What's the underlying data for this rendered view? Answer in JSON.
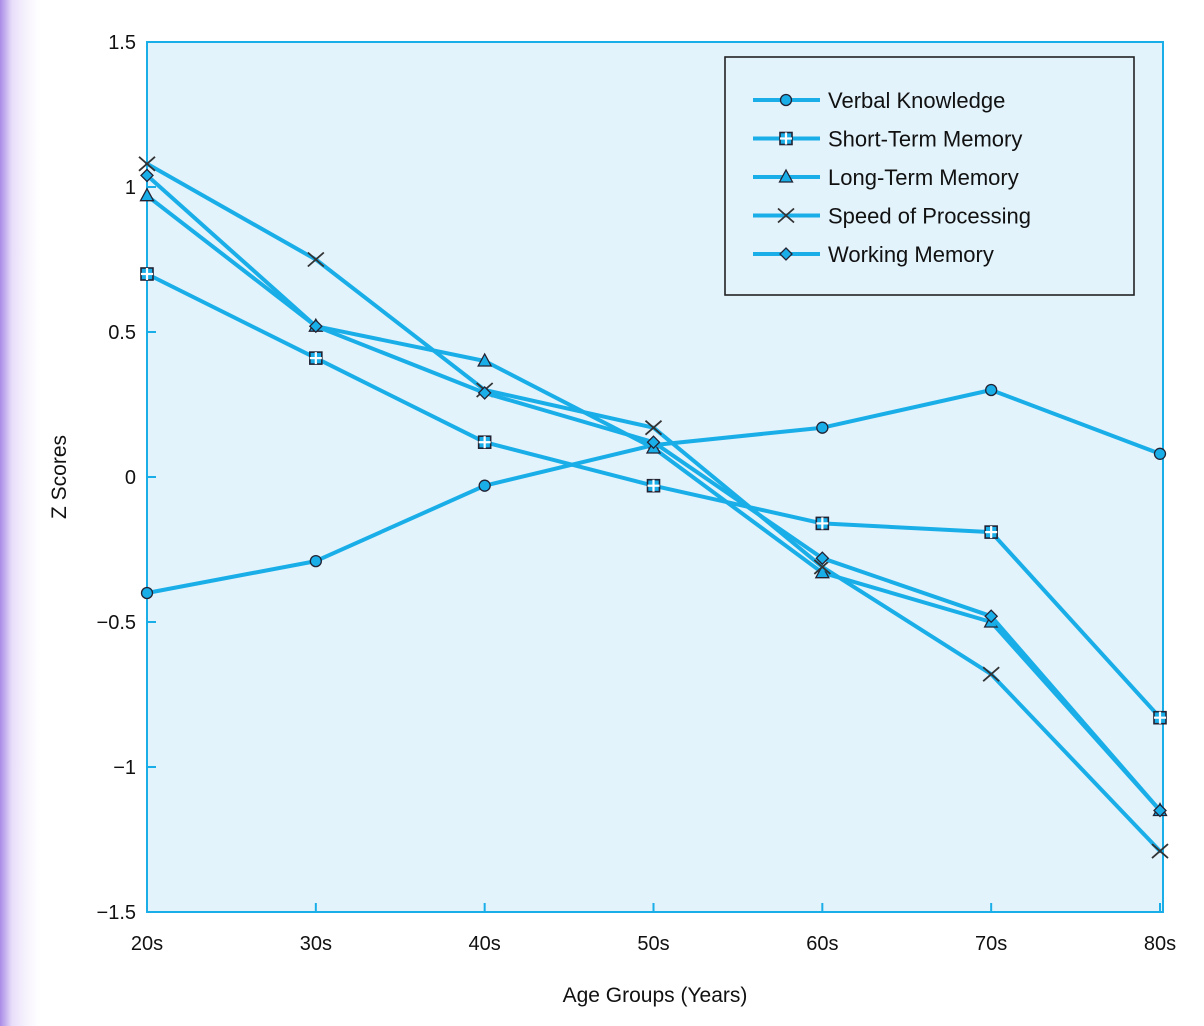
{
  "chart_data": {
    "type": "line",
    "title": "",
    "xlabel": "Age Groups (Years)",
    "ylabel": "Z Scores",
    "categories": [
      "20s",
      "30s",
      "40s",
      "50s",
      "60s",
      "70s",
      "80s"
    ],
    "ylim": [
      -1.5,
      1.5
    ],
    "yticks": [
      {
        "value": 1.5,
        "label": "1.5"
      },
      {
        "value": 1,
        "label": "1"
      },
      {
        "value": 0.5,
        "label": "0.5"
      },
      {
        "value": 0,
        "label": "0"
      },
      {
        "value": -0.5,
        "label": "−0.5"
      },
      {
        "value": -1,
        "label": "−1"
      },
      {
        "value": -1.5,
        "label": "−1.5"
      }
    ],
    "grid": false,
    "legend_position": "top-right",
    "line_color": "#1aaee8",
    "plot_background": "#e2f3fc",
    "series": [
      {
        "name": "Verbal Knowledge",
        "marker": "circle",
        "values": [
          -0.4,
          -0.29,
          -0.03,
          0.11,
          0.17,
          0.3,
          0.08
        ]
      },
      {
        "name": "Short-Term Memory",
        "marker": "square",
        "values": [
          0.7,
          0.41,
          0.12,
          -0.03,
          -0.16,
          -0.19,
          -0.83
        ]
      },
      {
        "name": "Long-Term Memory",
        "marker": "triangle",
        "values": [
          0.97,
          0.52,
          0.4,
          0.1,
          -0.33,
          -0.5,
          -1.15
        ]
      },
      {
        "name": "Speed of Processing",
        "marker": "x",
        "values": [
          1.08,
          0.75,
          0.3,
          0.17,
          -0.31,
          -0.68,
          -1.29
        ]
      },
      {
        "name": "Working Memory",
        "marker": "diamond",
        "values": [
          1.04,
          0.52,
          0.29,
          0.12,
          -0.28,
          -0.48,
          -1.15
        ]
      }
    ]
  }
}
